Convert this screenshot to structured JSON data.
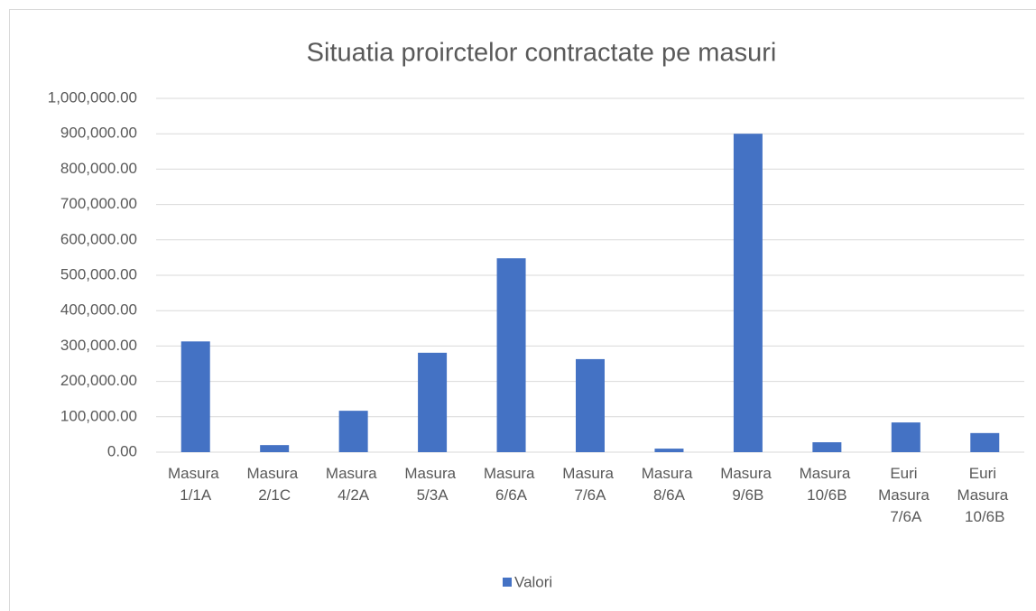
{
  "chart_data": {
    "type": "bar",
    "title": "Situatia proirctelor contractate pe masuri",
    "categories": [
      "Masura 1/1A",
      "Masura 2/1C",
      "Masura 4/2A",
      "Masura 5/3A",
      "Masura 6/6A",
      "Masura 7/6A",
      "Masura 8/6A",
      "Masura 9/6B",
      "Masura 10/6B",
      "Euri Masura 7/6A",
      "Euri Masura 10/6B"
    ],
    "series": [
      {
        "name": "Valori",
        "color": "#4472c4",
        "values": [
          313000,
          20000,
          117000,
          281000,
          548000,
          263000,
          10000,
          900000,
          28000,
          84000,
          54000
        ]
      }
    ],
    "ylim": [
      0,
      1000000
    ],
    "yticks": [
      {
        "value": 0,
        "label": "0.00"
      },
      {
        "value": 100000,
        "label": "100,000.00"
      },
      {
        "value": 200000,
        "label": "200,000.00"
      },
      {
        "value": 300000,
        "label": "300,000.00"
      },
      {
        "value": 400000,
        "label": "400,000.00"
      },
      {
        "value": 500000,
        "label": "500,000.00"
      },
      {
        "value": 600000,
        "label": "600,000.00"
      },
      {
        "value": 700000,
        "label": "700,000.00"
      },
      {
        "value": 800000,
        "label": "800,000.00"
      },
      {
        "value": 900000,
        "label": "900,000.00"
      },
      {
        "value": 1000000,
        "label": "1,000,000.00"
      }
    ],
    "grid": true,
    "legend": "bottom"
  }
}
